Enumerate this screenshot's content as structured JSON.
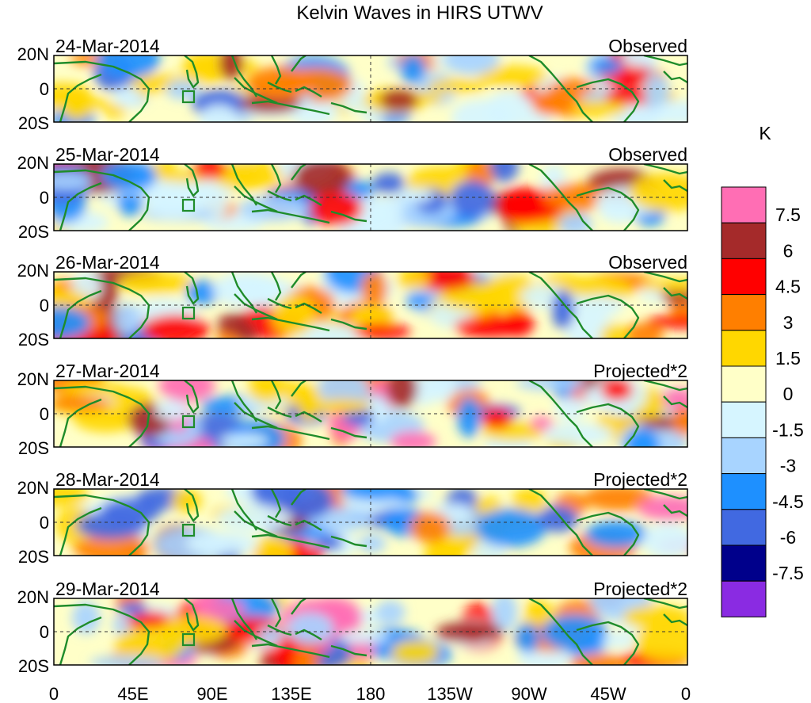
{
  "title": "Kelvin Waves in HIRS UTWV",
  "panels": [
    {
      "date": "24-Mar-2014",
      "type": "Observed"
    },
    {
      "date": "25-Mar-2014",
      "type": "Observed"
    },
    {
      "date": "26-Mar-2014",
      "type": "Observed"
    },
    {
      "date": "27-Mar-2014",
      "type": "Projected*2"
    },
    {
      "date": "28-Mar-2014",
      "type": "Projected*2"
    },
    {
      "date": "29-Mar-2014",
      "type": "Projected*2"
    }
  ],
  "lat_ticks": [
    "20N",
    "0",
    "20S"
  ],
  "lon_ticks": [
    "0",
    "45E",
    "90E",
    "135E",
    "180",
    "135W",
    "90W",
    "45W",
    "0"
  ],
  "colorbar": {
    "unit": "K",
    "labels": [
      "7.5",
      "6",
      "4.5",
      "3",
      "1.5",
      "0",
      "-1.5",
      "-3",
      "-4.5",
      "-6",
      "-7.5"
    ],
    "colors": [
      "#ff6eb4",
      "#a52a2a",
      "#ff0000",
      "#ff7f00",
      "#ffd700",
      "#ffffc8",
      "#d6f5ff",
      "#a8d4ff",
      "#1e90ff",
      "#4169e1",
      "#00008b",
      "#8a2be2"
    ]
  },
  "colors": {
    "land_outline": "#1f8c2a",
    "frame": "#000000"
  }
}
